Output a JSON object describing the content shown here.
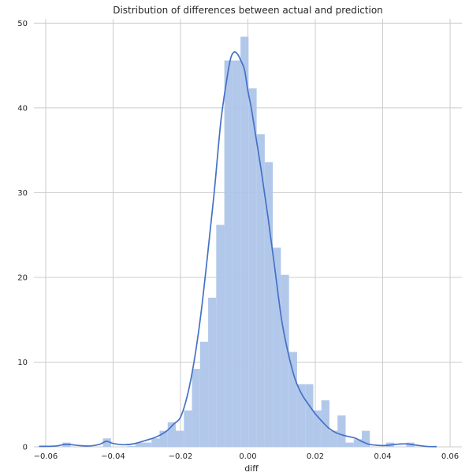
{
  "chart_data": {
    "type": "histogram",
    "title": "Distribution of differences between actual and prediction",
    "xlabel": "diff",
    "ylabel": "",
    "xlim": [
      -0.0635,
      0.0635
    ],
    "ylim": [
      0,
      50.5
    ],
    "grid": true,
    "colors": {
      "bars": "#aec5ea",
      "kde": "#4472c4",
      "grid": "#cccccc",
      "axes_bg": "#ffffff"
    },
    "x_ticks": [
      {
        "value": -0.06,
        "label": "−0.06"
      },
      {
        "value": -0.04,
        "label": "−0.04"
      },
      {
        "value": -0.02,
        "label": "−0.02"
      },
      {
        "value": 0.0,
        "label": "0.00"
      },
      {
        "value": 0.02,
        "label": "0.02"
      },
      {
        "value": 0.04,
        "label": "0.04"
      },
      {
        "value": 0.06,
        "label": "0.06"
      }
    ],
    "y_ticks": [
      {
        "value": 0,
        "label": "0"
      },
      {
        "value": 10,
        "label": "10"
      },
      {
        "value": 20,
        "label": "20"
      },
      {
        "value": 30,
        "label": "30"
      },
      {
        "value": 40,
        "label": "40"
      },
      {
        "value": 50,
        "label": "50"
      }
    ],
    "bins": [
      {
        "x0": -0.055,
        "x1": -0.0526,
        "density": 0.5
      },
      {
        "x0": -0.0526,
        "x1": -0.043,
        "density": 0.0
      },
      {
        "x0": -0.043,
        "x1": -0.0406,
        "density": 1.0
      },
      {
        "x0": -0.0406,
        "x1": -0.0358,
        "density": 0.0
      },
      {
        "x0": -0.0358,
        "x1": -0.0334,
        "density": 0.1
      },
      {
        "x0": -0.0334,
        "x1": -0.031,
        "density": 0.5
      },
      {
        "x0": -0.031,
        "x1": -0.0286,
        "density": 0.5
      },
      {
        "x0": -0.0286,
        "x1": -0.0262,
        "density": 1.0
      },
      {
        "x0": -0.0262,
        "x1": -0.0238,
        "density": 1.9
      },
      {
        "x0": -0.0238,
        "x1": -0.0214,
        "density": 2.9
      },
      {
        "x0": -0.0214,
        "x1": -0.019,
        "density": 1.9
      },
      {
        "x0": -0.019,
        "x1": -0.0166,
        "density": 4.3
      },
      {
        "x0": -0.0166,
        "x1": -0.0142,
        "density": 9.2
      },
      {
        "x0": -0.0142,
        "x1": -0.0118,
        "density": 12.4
      },
      {
        "x0": -0.0118,
        "x1": -0.0094,
        "density": 17.6
      },
      {
        "x0": -0.0094,
        "x1": -0.007,
        "density": 26.2
      },
      {
        "x0": -0.007,
        "x1": -0.0046,
        "density": 45.6
      },
      {
        "x0": -0.0046,
        "x1": -0.0022,
        "density": 45.6
      },
      {
        "x0": -0.0022,
        "x1": 0.0002,
        "density": 48.4
      },
      {
        "x0": 0.0002,
        "x1": 0.0026,
        "density": 42.3
      },
      {
        "x0": 0.0026,
        "x1": 0.005,
        "density": 36.9
      },
      {
        "x0": 0.005,
        "x1": 0.0074,
        "density": 33.6
      },
      {
        "x0": 0.0074,
        "x1": 0.0098,
        "density": 23.5
      },
      {
        "x0": 0.0098,
        "x1": 0.0122,
        "density": 20.3
      },
      {
        "x0": 0.0122,
        "x1": 0.0146,
        "density": 11.2
      },
      {
        "x0": 0.0146,
        "x1": 0.017,
        "density": 7.4
      },
      {
        "x0": 0.017,
        "x1": 0.0194,
        "density": 7.4
      },
      {
        "x0": 0.0194,
        "x1": 0.0218,
        "density": 4.3
      },
      {
        "x0": 0.0218,
        "x1": 0.0242,
        "density": 5.5
      },
      {
        "x0": 0.0242,
        "x1": 0.0266,
        "density": 1.9
      },
      {
        "x0": 0.0266,
        "x1": 0.029,
        "density": 3.7
      },
      {
        "x0": 0.029,
        "x1": 0.0314,
        "density": 0.5
      },
      {
        "x0": 0.0314,
        "x1": 0.0338,
        "density": 0.9
      },
      {
        "x0": 0.0338,
        "x1": 0.0362,
        "density": 1.9
      },
      {
        "x0": 0.0362,
        "x1": 0.041,
        "density": 0.0
      },
      {
        "x0": 0.041,
        "x1": 0.0434,
        "density": 0.5
      },
      {
        "x0": 0.0434,
        "x1": 0.047,
        "density": 0.0
      },
      {
        "x0": 0.047,
        "x1": 0.0494,
        "density": 0.5
      }
    ],
    "kde": {
      "x": [
        -0.062,
        -0.057,
        -0.054,
        -0.05,
        -0.047,
        -0.044,
        -0.042,
        -0.04,
        -0.037,
        -0.034,
        -0.03,
        -0.027,
        -0.024,
        -0.022,
        -0.02,
        -0.018,
        -0.016,
        -0.014,
        -0.012,
        -0.01,
        -0.008,
        -0.006,
        -0.005,
        -0.004,
        -0.003,
        -0.002,
        -0.001,
        0.0,
        0.001,
        0.002,
        0.004,
        0.006,
        0.008,
        0.01,
        0.012,
        0.014,
        0.016,
        0.018,
        0.02,
        0.022,
        0.024,
        0.026,
        0.028,
        0.03,
        0.032,
        0.034,
        0.036,
        0.038,
        0.04,
        0.042,
        0.044,
        0.047,
        0.05,
        0.053,
        0.056
      ],
      "y": [
        0.05,
        0.1,
        0.3,
        0.15,
        0.1,
        0.3,
        0.65,
        0.4,
        0.25,
        0.35,
        0.8,
        1.2,
        1.9,
        2.7,
        3.5,
        6.0,
        10.0,
        15.5,
        22.5,
        30.0,
        38.5,
        44.0,
        46.0,
        46.6,
        46.3,
        45.5,
        44.5,
        42.0,
        40.0,
        37.5,
        32.5,
        27.0,
        21.0,
        15.0,
        11.0,
        8.0,
        6.2,
        5.0,
        3.9,
        3.0,
        2.2,
        1.7,
        1.4,
        1.2,
        1.0,
        0.6,
        0.3,
        0.2,
        0.15,
        0.2,
        0.3,
        0.35,
        0.2,
        0.05,
        0.02
      ]
    }
  }
}
